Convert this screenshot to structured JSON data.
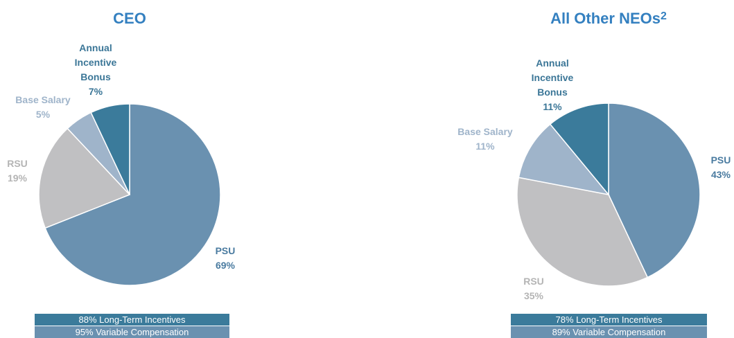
{
  "chart_data": [
    {
      "type": "pie",
      "title": "CEO",
      "categories": [
        "PSU",
        "RSU",
        "Base Salary",
        "Annual Incentive Bonus"
      ],
      "values": [
        69,
        19,
        5,
        7
      ],
      "value_labels": [
        "69%",
        "19%",
        "5%",
        "7%"
      ],
      "colors": [
        "#6a91b0",
        "#c0c0c2",
        "#9fb4ca",
        "#3b7b9b"
      ],
      "label_colors": [
        "#4a7ba0",
        "#b4b4b4",
        "#9fb4ca",
        "#3b7697"
      ],
      "annotations": [
        "88% Long-Term Incentives",
        "95% Variable Compensation"
      ]
    },
    {
      "type": "pie",
      "title": "All Other NEOs",
      "title_note": "2",
      "categories": [
        "PSU",
        "RSU",
        "Base Salary",
        "Annual Incentive Bonus"
      ],
      "values": [
        43,
        35,
        11,
        11
      ],
      "value_labels": [
        "43%",
        "35%",
        "11%",
        "11%"
      ],
      "colors": [
        "#6a91b0",
        "#c0c0c2",
        "#9fb4ca",
        "#3b7b9b"
      ],
      "label_colors": [
        "#4a7ba0",
        "#b4b4b4",
        "#9fb4ca",
        "#3b7697"
      ],
      "annotations": [
        "78% Long-Term Incentives",
        "89% Variable Compensation"
      ]
    }
  ]
}
